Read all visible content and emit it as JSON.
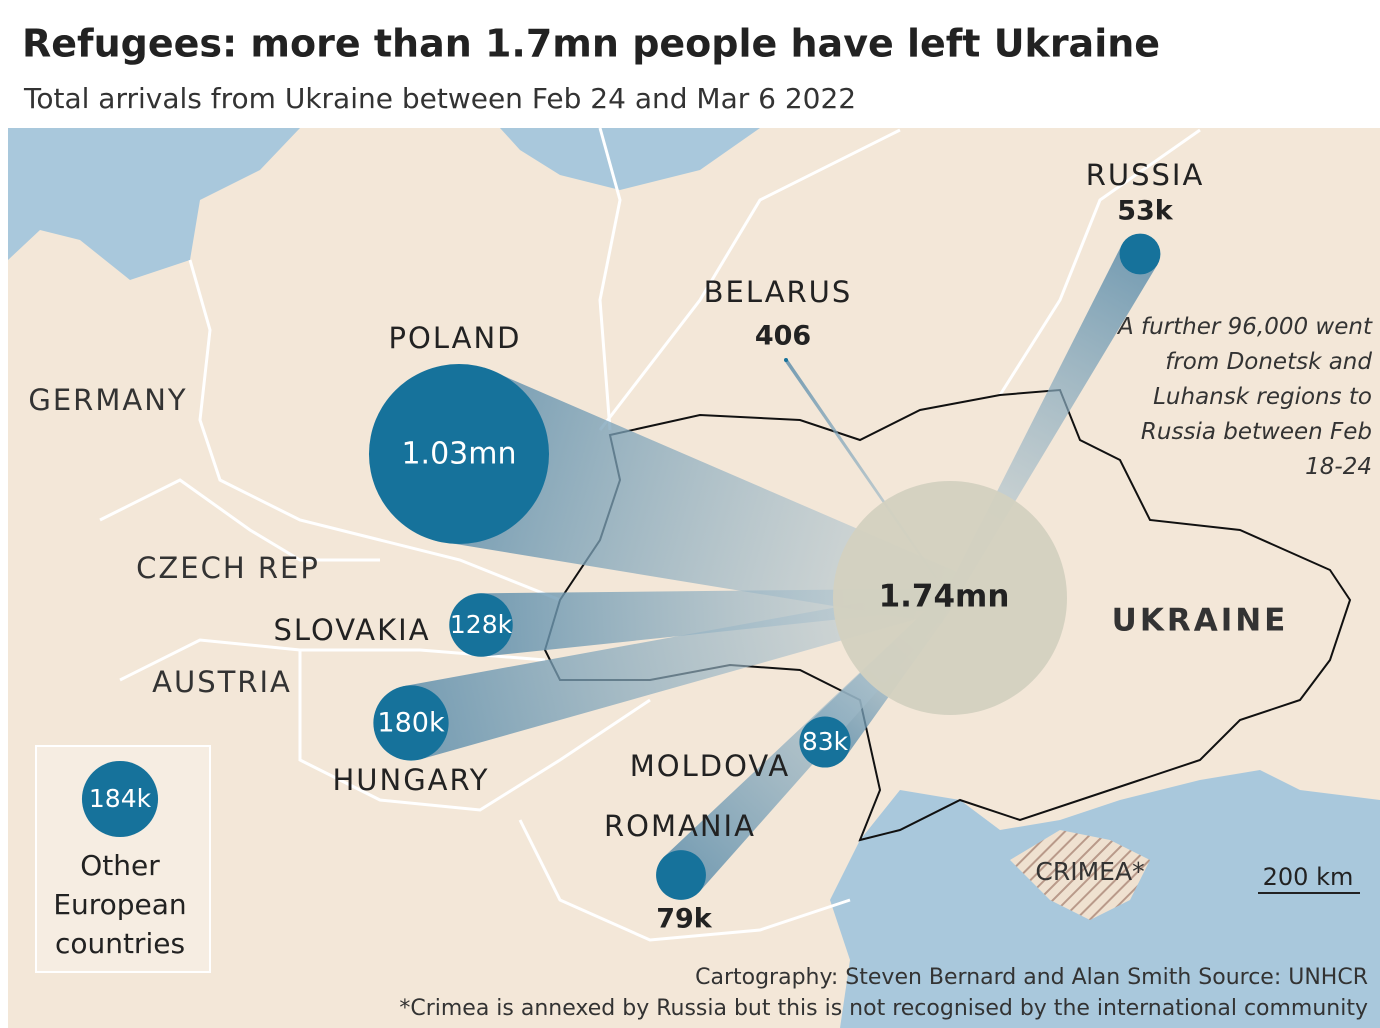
{
  "map": {
    "title": "Refugees: more than 1.7mn people have left Ukraine",
    "subtitle": "Total arrivals from Ukraine between Feb 24 and Mar 6 2022",
    "origin": {
      "name": "UKRAINE",
      "value": 1740000,
      "value_label": "1.74mn"
    },
    "flows": [
      {
        "name": "POLAND",
        "value": 1030000,
        "value_label": "1.03mn"
      },
      {
        "name": "SLOVAKIA",
        "value": 128000,
        "value_label": "128k"
      },
      {
        "name": "HUNGARY",
        "value": 180000,
        "value_label": "180k"
      },
      {
        "name": "MOLDOVA",
        "value": 83000,
        "value_label": "83k"
      },
      {
        "name": "ROMANIA",
        "value": 79000,
        "value_label": "79k"
      },
      {
        "name": "RUSSIA",
        "value": 53000,
        "value_label": "53k"
      },
      {
        "name": "BELARUS",
        "value": 406,
        "value_label": "406"
      },
      {
        "name": "Other European countries",
        "value": 184000,
        "value_label": "184k"
      }
    ],
    "labels": [
      "GERMANY",
      "CZECH REP",
      "AUSTRIA",
      "CRIMEA*"
    ],
    "note": "A further 96,000 went from Donetsk and Luhansk regions to Russia between Feb 18-24",
    "scale": "200 km",
    "credit": "Cartography: Steven Bernard and Alan Smith   Source: UNHCR",
    "footnote": "*Crimea is annexed by Russia but this is not recognised by the international community"
  }
}
